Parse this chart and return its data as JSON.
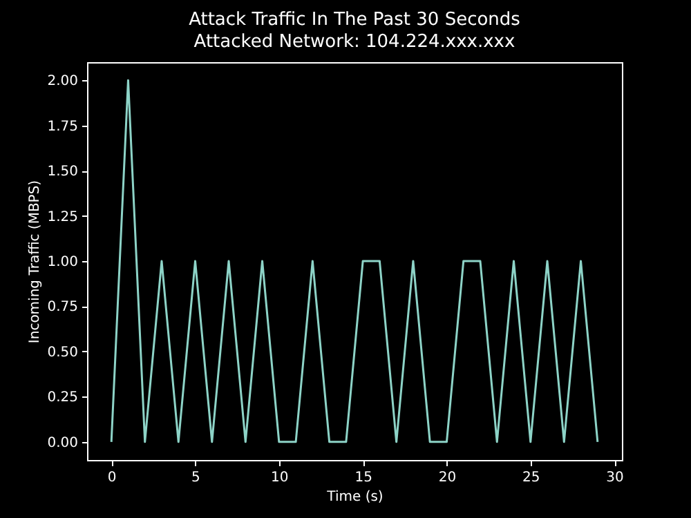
{
  "chart_data": {
    "type": "line",
    "title": "Attack Traffic In The Past 30 Seconds",
    "subtitle": "Attacked Network: 104.224.xxx.xxx",
    "xlabel": "Time (s)",
    "ylabel": "Incoming Traffic (MBPS)",
    "x": [
      0,
      1,
      2,
      3,
      4,
      5,
      6,
      7,
      8,
      9,
      10,
      11,
      12,
      13,
      14,
      15,
      16,
      17,
      18,
      19,
      20,
      21,
      22,
      23,
      24,
      25,
      26,
      27,
      28,
      29
    ],
    "series": [
      {
        "color": "#8dd3c7",
        "values": [
          0,
          2,
          0,
          1,
          0,
          1,
          0,
          1,
          0,
          1,
          0,
          0,
          1,
          0,
          0,
          1,
          1,
          0,
          1,
          0,
          0,
          1,
          1,
          0,
          1,
          0,
          1,
          0,
          1,
          0
        ]
      }
    ],
    "xlim": [
      -1.45,
      30.45
    ],
    "ylim": [
      -0.1,
      2.1
    ],
    "xticks": [
      0,
      5,
      10,
      15,
      20,
      25,
      30
    ],
    "yticks": [
      {
        "value": 0,
        "label": "0.00"
      },
      {
        "value": 0.25,
        "label": "0.25"
      },
      {
        "value": 0.5,
        "label": "0.50"
      },
      {
        "value": 0.75,
        "label": "0.75"
      },
      {
        "value": 1,
        "label": "1.00"
      },
      {
        "value": 1.25,
        "label": "1.25"
      },
      {
        "value": 1.5,
        "label": "1.50"
      },
      {
        "value": 1.75,
        "label": "1.75"
      },
      {
        "value": 2,
        "label": "2.00"
      }
    ],
    "grid": false,
    "legend": false,
    "marker": "none",
    "line_style": "solid"
  }
}
